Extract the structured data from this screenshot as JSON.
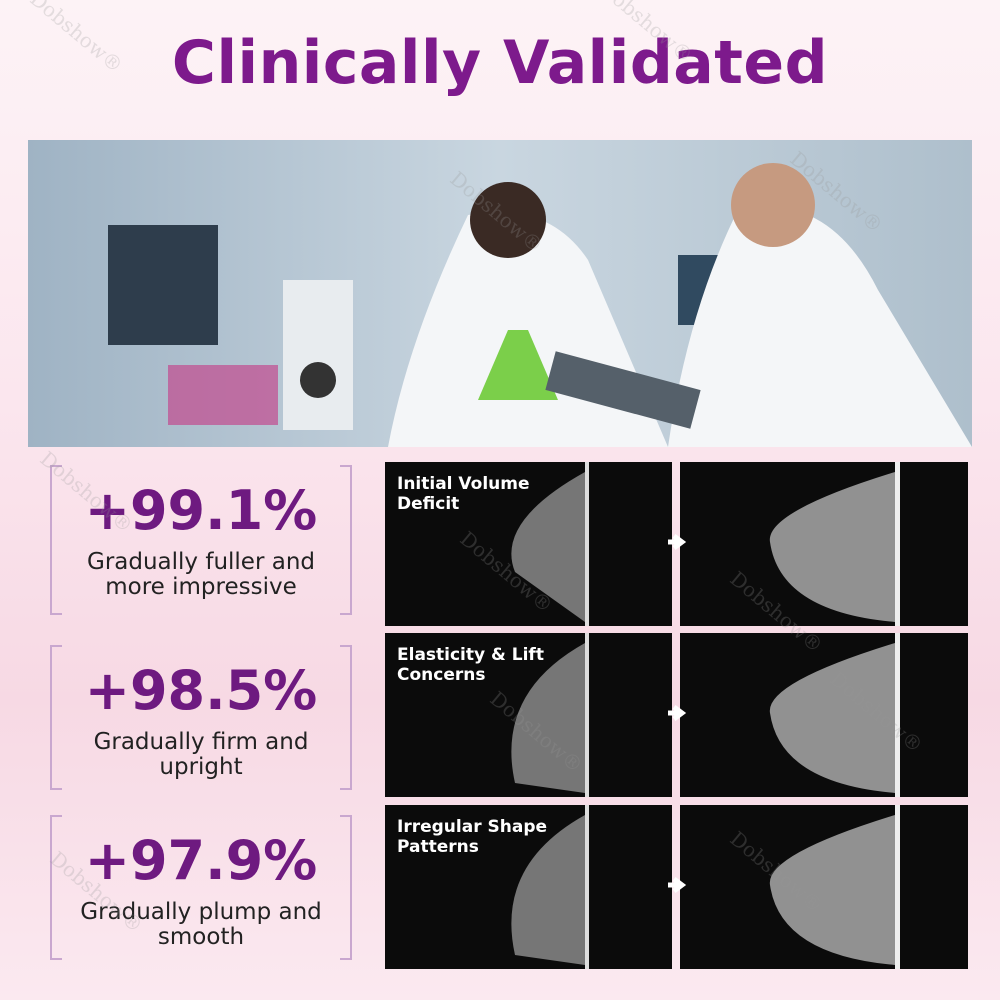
{
  "title": "Clinically Validated",
  "watermark": "Dobshow®",
  "stats": [
    {
      "value": "+99.1%",
      "description": "Gradually fuller and more impressive"
    },
    {
      "value": "+98.5%",
      "description": "Gradually firm and upright"
    },
    {
      "value": "+97.9%",
      "description": "Gradually plump and smooth"
    }
  ],
  "panels": [
    {
      "label": "Initial Volume Deficit"
    },
    {
      "label": "Elasticity & Lift Concerns"
    },
    {
      "label": "Irregular Shape Patterns"
    }
  ]
}
